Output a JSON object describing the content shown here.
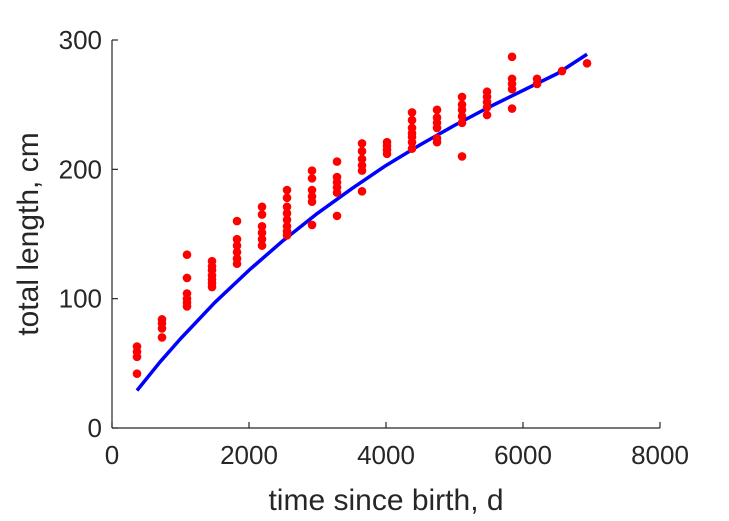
{
  "chart_data": {
    "type": "scatter",
    "xlabel": "time since birth, d",
    "ylabel": "total length, cm",
    "xlim": [
      0,
      8000
    ],
    "ylim": [
      0,
      300
    ],
    "xticks": [
      0,
      2000,
      4000,
      6000,
      8000
    ],
    "yticks": [
      0,
      100,
      200,
      300
    ],
    "grid": false,
    "series": [
      {
        "kind": "points",
        "color": "#ff0000",
        "points": [
          [
            365,
            63
          ],
          [
            365,
            59
          ],
          [
            365,
            55
          ],
          [
            365,
            42
          ],
          [
            730,
            84
          ],
          [
            730,
            81
          ],
          [
            730,
            77
          ],
          [
            730,
            70
          ],
          [
            1095,
            134
          ],
          [
            1095,
            116
          ],
          [
            1095,
            104
          ],
          [
            1095,
            100
          ],
          [
            1095,
            97
          ],
          [
            1095,
            94
          ],
          [
            1460,
            129
          ],
          [
            1460,
            125
          ],
          [
            1460,
            122
          ],
          [
            1460,
            118
          ],
          [
            1460,
            115
          ],
          [
            1460,
            112
          ],
          [
            1460,
            109
          ],
          [
            1825,
            160
          ],
          [
            1825,
            146
          ],
          [
            1825,
            141
          ],
          [
            1825,
            136
          ],
          [
            1825,
            131
          ],
          [
            1825,
            127
          ],
          [
            2190,
            171
          ],
          [
            2190,
            165
          ],
          [
            2190,
            156
          ],
          [
            2190,
            151
          ],
          [
            2190,
            146
          ],
          [
            2190,
            141
          ],
          [
            2555,
            184
          ],
          [
            2555,
            178
          ],
          [
            2555,
            171
          ],
          [
            2555,
            166
          ],
          [
            2555,
            161
          ],
          [
            2555,
            156
          ],
          [
            2555,
            152
          ],
          [
            2555,
            149
          ],
          [
            2920,
            199
          ],
          [
            2920,
            193
          ],
          [
            2920,
            184
          ],
          [
            2920,
            179
          ],
          [
            2920,
            175
          ],
          [
            2920,
            157
          ],
          [
            3285,
            206
          ],
          [
            3285,
            194
          ],
          [
            3285,
            190
          ],
          [
            3285,
            186
          ],
          [
            3285,
            182
          ],
          [
            3285,
            164
          ],
          [
            3650,
            220
          ],
          [
            3650,
            214
          ],
          [
            3650,
            208
          ],
          [
            3650,
            203
          ],
          [
            3650,
            199
          ],
          [
            3650,
            183
          ],
          [
            4015,
            221
          ],
          [
            4015,
            218
          ],
          [
            4015,
            215
          ],
          [
            4015,
            212
          ],
          [
            4380,
            244
          ],
          [
            4380,
            238
          ],
          [
            4380,
            232
          ],
          [
            4380,
            228
          ],
          [
            4380,
            225
          ],
          [
            4380,
            221
          ],
          [
            4380,
            216
          ],
          [
            4745,
            246
          ],
          [
            4745,
            240
          ],
          [
            4745,
            236
          ],
          [
            4745,
            232
          ],
          [
            4745,
            224
          ],
          [
            4745,
            221
          ],
          [
            5110,
            256
          ],
          [
            5110,
            250
          ],
          [
            5110,
            246
          ],
          [
            5110,
            241
          ],
          [
            5110,
            236
          ],
          [
            5110,
            210
          ],
          [
            5475,
            260
          ],
          [
            5475,
            256
          ],
          [
            5475,
            252
          ],
          [
            5475,
            248
          ],
          [
            5475,
            242
          ],
          [
            5840,
            287
          ],
          [
            5840,
            270
          ],
          [
            5840,
            266
          ],
          [
            5840,
            262
          ],
          [
            5840,
            247
          ],
          [
            6205,
            270
          ],
          [
            6205,
            266
          ],
          [
            6570,
            276
          ],
          [
            6935,
            282
          ]
        ]
      },
      {
        "kind": "line",
        "color": "#0000ff",
        "x": [
          365,
          700,
          1000,
          1500,
          2000,
          2500,
          3000,
          3500,
          4000,
          4500,
          5000,
          5500,
          6000,
          6500,
          6935
        ],
        "y": [
          29,
          51,
          69,
          97,
          122,
          145,
          166,
          185,
          203,
          219,
          234,
          248,
          261,
          274,
          289
        ]
      }
    ]
  }
}
